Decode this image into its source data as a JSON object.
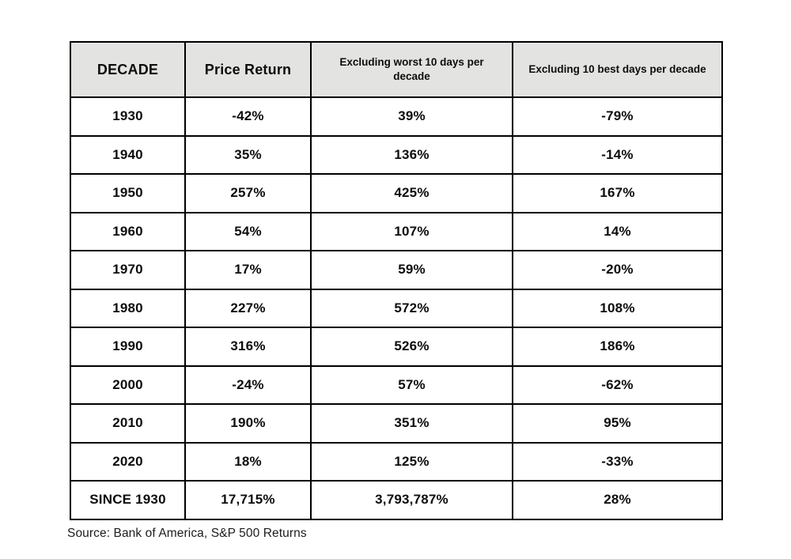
{
  "colors": {
    "header_bg": "#e3e3e1",
    "border": "#000000",
    "text": "#0d0d0d"
  },
  "chart_data": {
    "type": "table",
    "columns": [
      "DECADE",
      "Price Return",
      "Excluding worst 10 days per decade",
      "Excluding 10 best days per decade"
    ],
    "rows": [
      [
        "1930",
        "-42%",
        "39%",
        "-79%"
      ],
      [
        "1940",
        "35%",
        "136%",
        "-14%"
      ],
      [
        "1950",
        "257%",
        "425%",
        "167%"
      ],
      [
        "1960",
        "54%",
        "107%",
        "14%"
      ],
      [
        "1970",
        "17%",
        "59%",
        "-20%"
      ],
      [
        "1980",
        "227%",
        "572%",
        "108%"
      ],
      [
        "1990",
        "316%",
        "526%",
        "186%"
      ],
      [
        "2000",
        "-24%",
        "57%",
        "-62%"
      ],
      [
        "2010",
        "190%",
        "351%",
        "95%"
      ],
      [
        "2020",
        "18%",
        "125%",
        "-33%"
      ],
      [
        "SINCE 1930",
        "17,715%",
        "3,793,787%",
        "28%"
      ]
    ],
    "source": "Source: Bank of America, S&P 500 Returns",
    "legend": false,
    "grid": true
  }
}
